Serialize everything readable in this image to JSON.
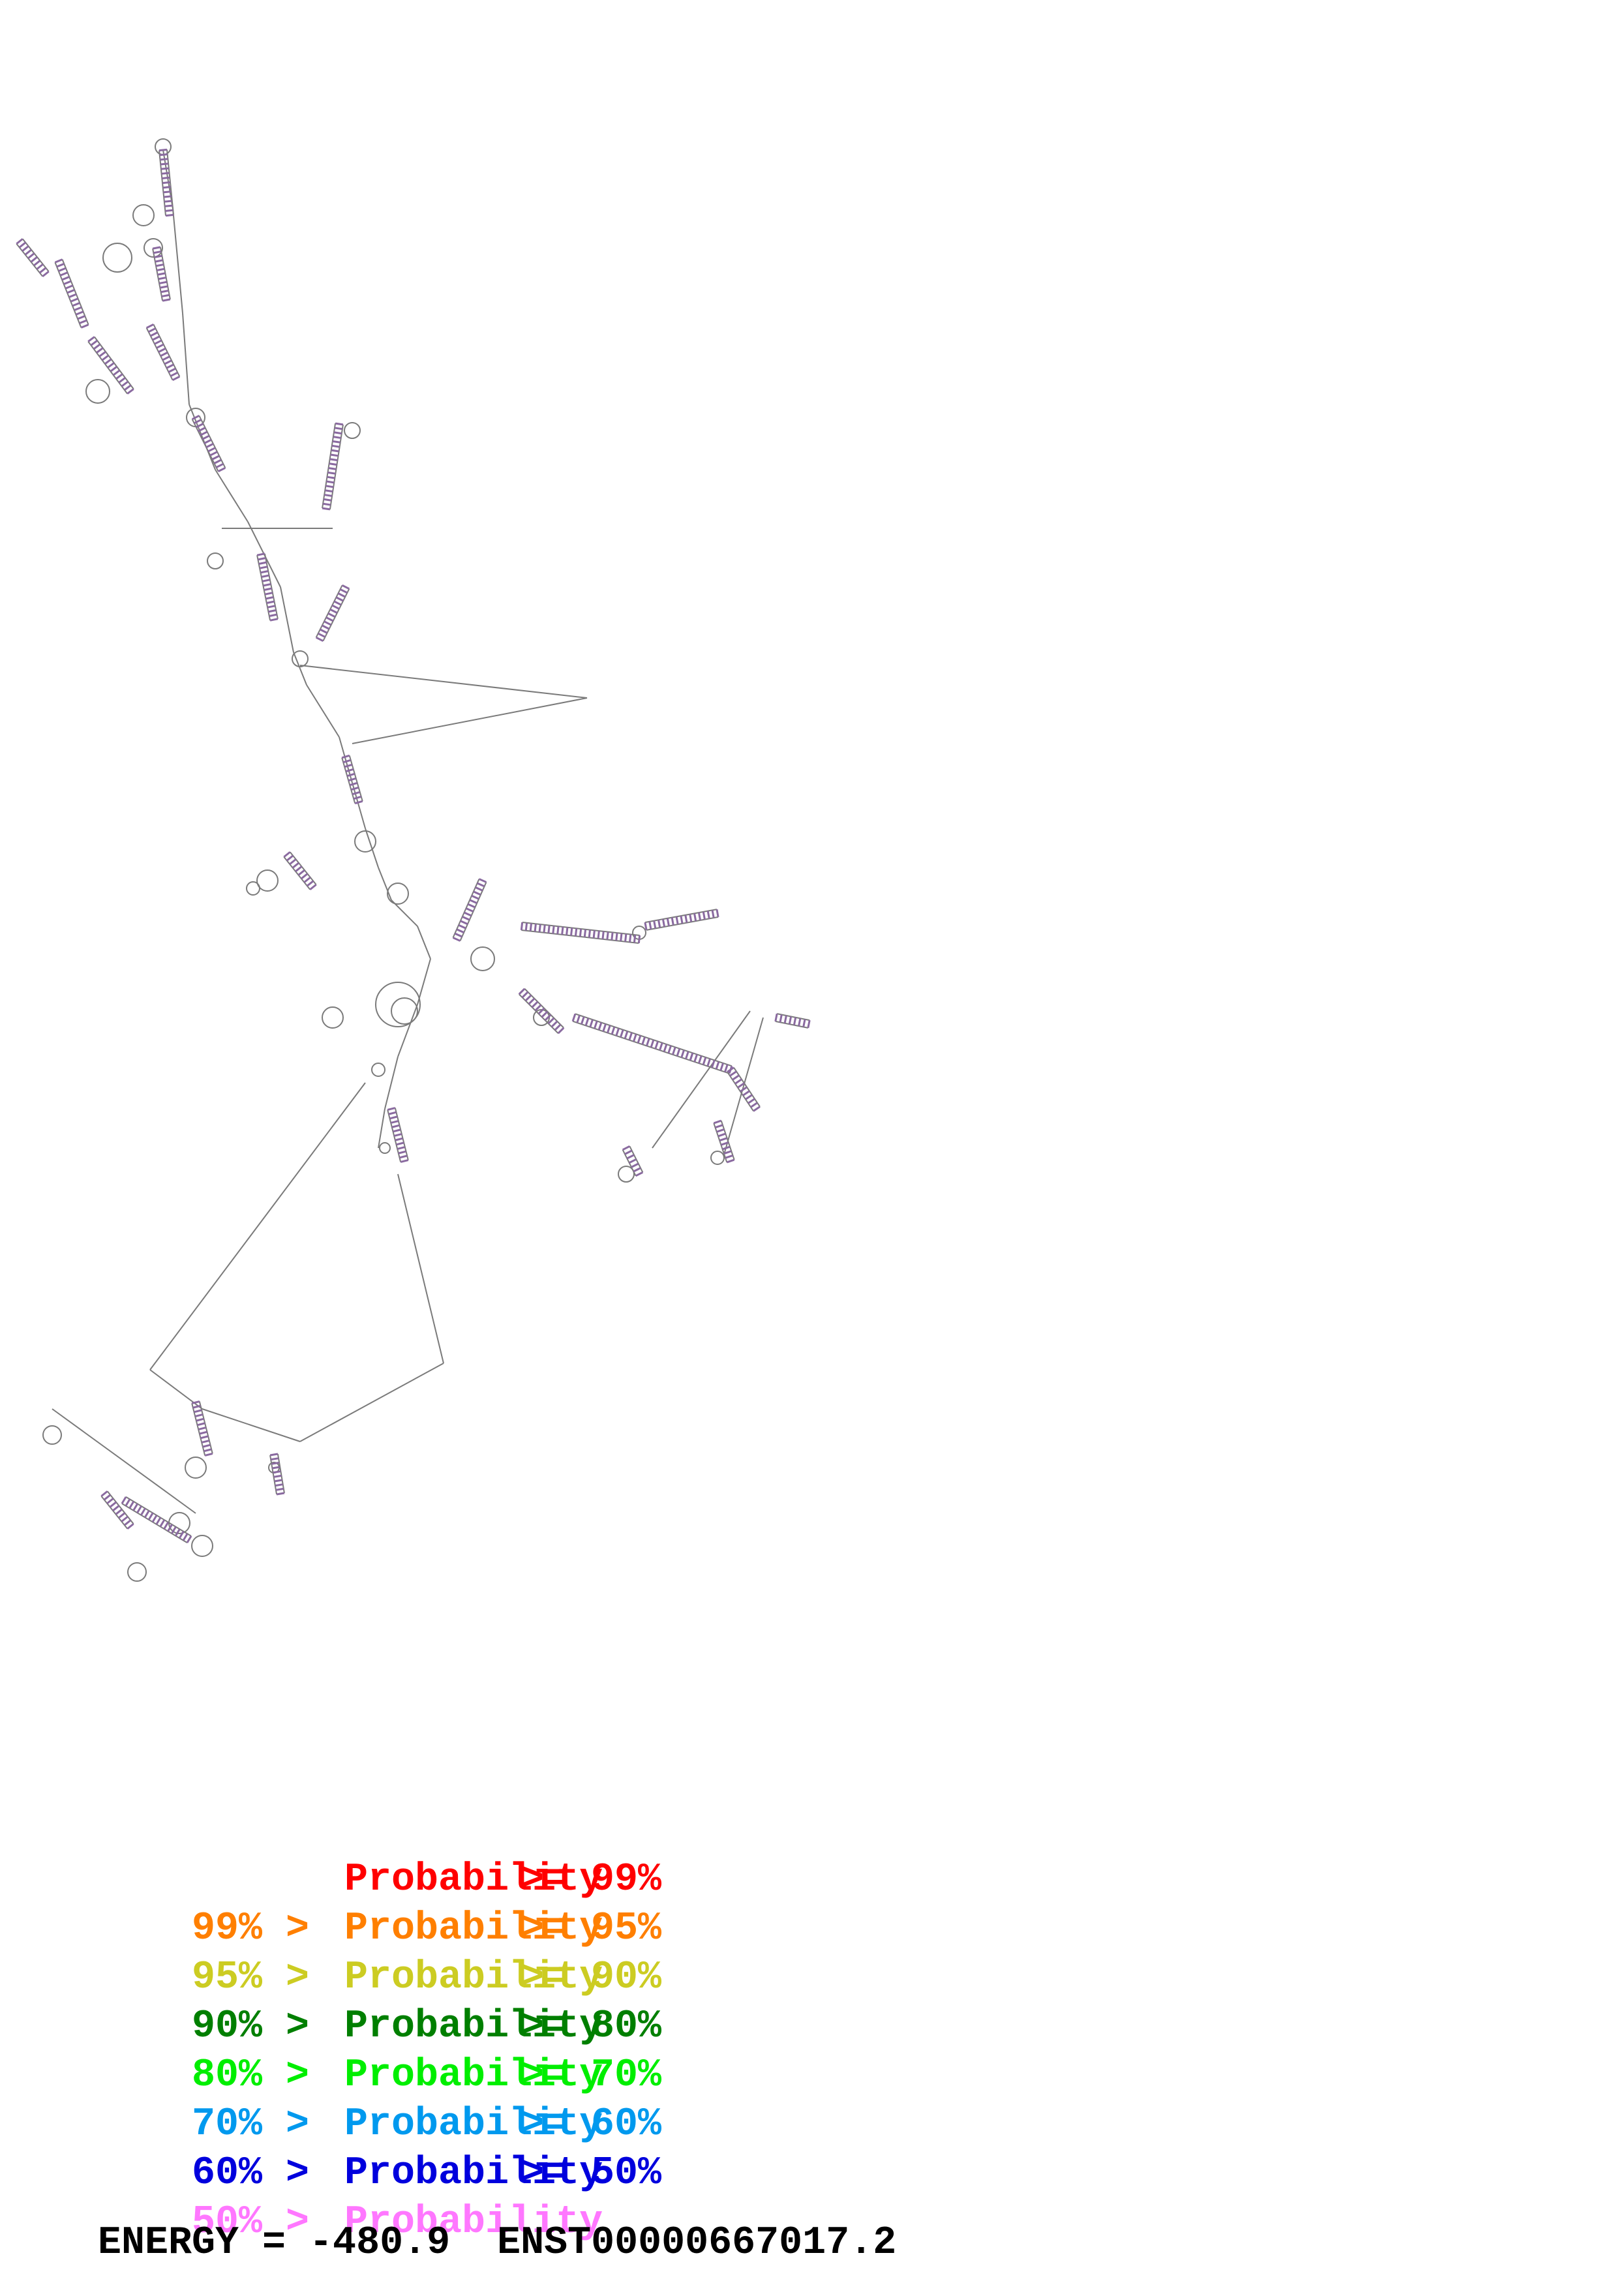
{
  "legend": {
    "entries": [
      {
        "prefix": "",
        "label": "Probability",
        "suffix": ">= 99%",
        "color": "#ff0000"
      },
      {
        "prefix": "99% >",
        "label": "Probability",
        "suffix": ">= 95%",
        "color": "#ff7f00"
      },
      {
        "prefix": "95% >",
        "label": "Probability",
        "suffix": ">= 90%",
        "color": "#cccc22"
      },
      {
        "prefix": "90% >",
        "label": "Probability",
        "suffix": ">= 80%",
        "color": "#007f00"
      },
      {
        "prefix": "80% >",
        "label": "Probability",
        "suffix": ">= 70%",
        "color": "#00ee00"
      },
      {
        "prefix": "70% >",
        "label": "Probability",
        "suffix": ">= 60%",
        "color": "#0099ee"
      },
      {
        "prefix": "60% >",
        "label": "Probability",
        "suffix": ">= 50%",
        "color": "#0000dd"
      },
      {
        "prefix": "50% >",
        "label": "Probability",
        "suffix": "",
        "color": "#ff77ff"
      }
    ]
  },
  "footer": {
    "energy_text": "ENERGY = -480.9",
    "transcript_id": "ENST00000667017.2"
  },
  "colors": {
    "backbone": "#7a7a7a",
    "base_pairs": "#8a6aa0",
    "highlight_green": "#4f9a3a"
  }
}
